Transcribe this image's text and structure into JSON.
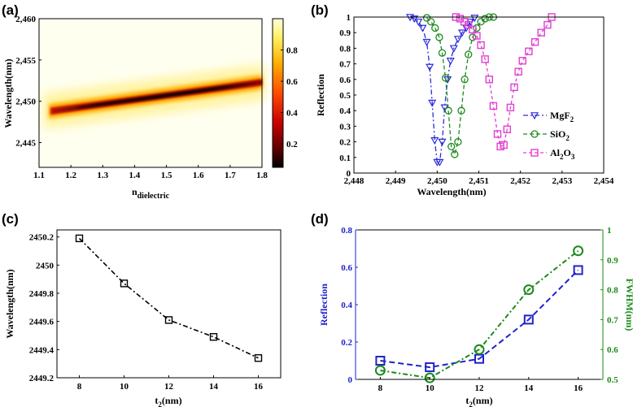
{
  "chart_data": [
    {
      "panel": "(a)",
      "type": "heatmap",
      "xlabel_main": "n",
      "xlabel_sub": "dielectric",
      "ylabel": "Wavelength(nm)",
      "xlim": [
        1.1,
        1.8
      ],
      "ylim": [
        2442,
        2460
      ],
      "xticks": [
        "1.1",
        "1.2",
        "1.3",
        "1.4",
        "1.5",
        "1.6",
        "1.7",
        "1.8"
      ],
      "yticks": [
        "2,445",
        "2,450",
        "2,455",
        "2,460"
      ],
      "colorbar_ticks": [
        "0.2",
        "0.4",
        "0.6",
        "0.8"
      ],
      "colorbar_range": [
        0.05,
        1.0
      ],
      "ridge": {
        "x": [
          1.13,
          1.8
        ],
        "y": [
          2448.8,
          2452.3
        ]
      },
      "ridge_min_value": 0.05
    },
    {
      "panel": "(b)",
      "type": "line",
      "xlabel": "Wavelength(nm)",
      "ylabel": "Reflection",
      "xlim": [
        2448,
        2454
      ],
      "ylim": [
        0,
        1
      ],
      "xticks": [
        "2,448",
        "2,449",
        "2,450",
        "2,451",
        "2,452",
        "2,453",
        "2,454"
      ],
      "yticks": [
        "0",
        "0.1",
        "0.2",
        "0.3",
        "0.4",
        "0.5",
        "0.6",
        "0.7",
        "0.8",
        "0.9",
        "1"
      ],
      "series": [
        {
          "name_main": "MgF",
          "name_sub": "2",
          "color": "#2b2bd9",
          "marker": "triangle-down",
          "dash": "6,3,2,3",
          "x": [
            2449.35,
            2449.45,
            2449.55,
            2449.65,
            2449.75,
            2449.82,
            2449.88,
            2449.94,
            2450.0,
            2450.06,
            2450.12,
            2450.18,
            2450.25,
            2450.32,
            2450.4,
            2450.5,
            2450.6,
            2450.7,
            2450.8,
            2450.9
          ],
          "y": [
            1.0,
            0.99,
            0.97,
            0.93,
            0.84,
            0.68,
            0.45,
            0.21,
            0.07,
            0.07,
            0.2,
            0.42,
            0.6,
            0.72,
            0.8,
            0.86,
            0.9,
            0.93,
            0.97,
            0.995
          ]
        },
        {
          "name_main": "SiO",
          "name_sub": "2",
          "color": "#1e8a1e",
          "marker": "circle",
          "dash": "5,3",
          "x": [
            2449.75,
            2449.85,
            2449.95,
            2450.05,
            2450.12,
            2450.2,
            2450.27,
            2450.34,
            2450.42,
            2450.5,
            2450.58,
            2450.66,
            2450.75,
            2450.85,
            2450.95,
            2451.05,
            2451.15,
            2451.25,
            2451.35
          ],
          "y": [
            0.995,
            0.97,
            0.93,
            0.87,
            0.77,
            0.61,
            0.4,
            0.17,
            0.12,
            0.2,
            0.4,
            0.6,
            0.76,
            0.87,
            0.93,
            0.97,
            0.99,
            1.0,
            1.0
          ],
          "markerx": [
            2449.75,
            2449.85,
            2449.95,
            2450.05,
            2450.12,
            2450.2,
            2450.27,
            2450.34,
            2450.42,
            2450.5,
            2450.58,
            2450.66,
            2450.75,
            2450.85,
            2450.95,
            2451.05,
            2451.15,
            2451.25,
            2451.35
          ]
        },
        {
          "name_main": "Al",
          "name_sub": "2",
          "name_main2": "O",
          "name_sub2": "3",
          "color": "#e040d0",
          "marker": "square",
          "dash": "4,3",
          "x": [
            2450.45,
            2450.55,
            2450.65,
            2450.75,
            2450.85,
            2450.95,
            2451.05,
            2451.15,
            2451.25,
            2451.35,
            2451.45,
            2451.52,
            2451.6,
            2451.68,
            2451.76,
            2451.85,
            2451.95,
            2452.05,
            2452.2,
            2452.35,
            2452.5,
            2452.65,
            2452.75
          ],
          "y": [
            1.0,
            0.99,
            0.97,
            0.95,
            0.92,
            0.88,
            0.82,
            0.73,
            0.6,
            0.43,
            0.25,
            0.17,
            0.18,
            0.28,
            0.42,
            0.55,
            0.65,
            0.72,
            0.78,
            0.84,
            0.9,
            0.95,
            1.0
          ]
        }
      ]
    },
    {
      "panel": "(c)",
      "type": "line",
      "xlabel_main": "t",
      "xlabel_sub": "2",
      "xlabel_tail": "(nm)",
      "ylabel": "Wavelength(nm)",
      "xlim": [
        7,
        17
      ],
      "ylim": [
        2449.2,
        2450.25
      ],
      "xticks": [
        "8",
        "10",
        "12",
        "14",
        "16"
      ],
      "yticks": [
        "2449.2",
        "2449.4",
        "2449.6",
        "2449.8",
        "2450",
        "2450.2"
      ],
      "series": [
        {
          "color": "#000000",
          "marker": "square",
          "dash": "6,3,2,3",
          "x": [
            8,
            10,
            12,
            14,
            16
          ],
          "y": [
            2450.19,
            2449.87,
            2449.61,
            2449.49,
            2449.34
          ]
        }
      ]
    },
    {
      "panel": "(d)",
      "type": "line",
      "xlabel_main": "t",
      "xlabel_sub": "2",
      "xlabel_tail": "(nm)",
      "ylabel": "Reflection",
      "ylabel_right": "FWHM(nm)",
      "xlim": [
        7,
        17
      ],
      "ylim": [
        0,
        0.8
      ],
      "ylim_right": [
        0.5,
        1.0
      ],
      "xticks": [
        "8",
        "10",
        "12",
        "14",
        "16"
      ],
      "yticks": [
        "0",
        "0.2",
        "0.4",
        "0.6",
        "0.8"
      ],
      "yticks_right": [
        "0.5",
        "0.6",
        "0.7",
        "0.8",
        "0.9",
        "1"
      ],
      "series": [
        {
          "axis": "left",
          "color": "#2222cc",
          "marker": "square",
          "dash": "7,4",
          "x": [
            8,
            10,
            12,
            14,
            16
          ],
          "y": [
            0.1,
            0.065,
            0.11,
            0.32,
            0.585
          ]
        },
        {
          "axis": "right",
          "color": "#1a8a1a",
          "marker": "circle",
          "dash": "6,3,2,3",
          "x": [
            8,
            10,
            12,
            14,
            16
          ],
          "y": [
            0.53,
            0.505,
            0.6,
            0.8,
            0.93
          ]
        }
      ]
    }
  ],
  "axes_colors": {
    "left_d": "#2222cc",
    "right_d": "#1a8a1a"
  }
}
